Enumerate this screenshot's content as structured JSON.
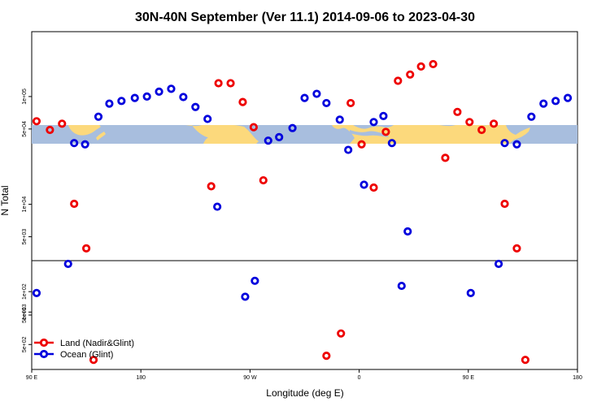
{
  "chart_data": {
    "type": "scatter",
    "title": "30N-40N September (Ver 11.1)   2014-09-06 to 2023-04-30",
    "xlabel": "Longitude (deg E)",
    "ylabel": "N Total",
    "x_ticks": [
      {
        "value": 90,
        "label": "90 E"
      },
      {
        "value": 180,
        "label": "180"
      },
      {
        "value": 270,
        "label": "90 W"
      },
      {
        "value": 360,
        "label": "0"
      },
      {
        "value": 450,
        "label": "90 E"
      },
      {
        "value": 540,
        "label": "180"
      }
    ],
    "xlim": [
      90,
      540
    ],
    "y_scale": "log",
    "panels": [
      {
        "name": "upper",
        "ylim": [
          3000,
          400000
        ],
        "ticks": [
          {
            "value": 100000,
            "label": "1e+05"
          },
          {
            "value": 50000,
            "label": "5e+04"
          },
          {
            "value": 10000,
            "label": "1e+04"
          },
          {
            "value": 5000,
            "label": "5e+03"
          },
          {
            "value": 1000,
            "label": "1e+03"
          },
          {
            "value": 500,
            "label": "5e+02"
          }
        ]
      },
      {
        "name": "lower",
        "ylim": [
          10,
          250
        ],
        "ticks": [
          {
            "value": 100,
            "label": "1e+02"
          },
          {
            "value": 50,
            "label": "5e+01"
          }
        ]
      }
    ],
    "land_map_band": {
      "y_range": [
        10000,
        20000
      ],
      "ocean_color": "#a8bede",
      "land_color": "#fcd97c"
    },
    "series": [
      {
        "name": "Land (Nadir&Glint)",
        "color": "#ee0000",
        "points": [
          {
            "x": 94,
            "y": 59000,
            "panel": "upper"
          },
          {
            "x": 105,
            "y": 49000,
            "panel": "upper"
          },
          {
            "x": 115,
            "y": 56000,
            "panel": "upper"
          },
          {
            "x": 125,
            "y": 10100,
            "panel": "upper"
          },
          {
            "x": 135,
            "y": 3900,
            "panel": "upper"
          },
          {
            "x": 141,
            "y": 360,
            "panel": "upper"
          },
          {
            "x": 238,
            "y": 14700,
            "panel": "upper"
          },
          {
            "x": 244,
            "y": 133000,
            "panel": "upper"
          },
          {
            "x": 254,
            "y": 133000,
            "panel": "upper"
          },
          {
            "x": 264,
            "y": 89000,
            "panel": "upper"
          },
          {
            "x": 273,
            "y": 52000,
            "panel": "upper"
          },
          {
            "x": 281,
            "y": 16700,
            "panel": "upper"
          },
          {
            "x": 333,
            "y": 15,
            "panel": "lower"
          },
          {
            "x": 345,
            "y": 29,
            "panel": "lower"
          },
          {
            "x": 353,
            "y": 87000,
            "panel": "upper"
          },
          {
            "x": 362,
            "y": 36000,
            "panel": "upper"
          },
          {
            "x": 372,
            "y": 14300,
            "panel": "upper"
          },
          {
            "x": 382,
            "y": 47000,
            "panel": "upper"
          },
          {
            "x": 392,
            "y": 140000,
            "panel": "upper"
          },
          {
            "x": 402,
            "y": 160000,
            "panel": "upper"
          },
          {
            "x": 411,
            "y": 190000,
            "panel": "upper"
          },
          {
            "x": 421,
            "y": 200000,
            "panel": "upper"
          },
          {
            "x": 431,
            "y": 27000,
            "panel": "upper"
          },
          {
            "x": 441,
            "y": 72000,
            "panel": "upper"
          },
          {
            "x": 451,
            "y": 58000,
            "panel": "upper"
          },
          {
            "x": 461,
            "y": 49000,
            "panel": "upper"
          },
          {
            "x": 471,
            "y": 56000,
            "panel": "upper"
          },
          {
            "x": 480,
            "y": 10100,
            "panel": "upper"
          },
          {
            "x": 490,
            "y": 3900,
            "panel": "upper"
          },
          {
            "x": 497,
            "y": 360,
            "panel": "upper"
          }
        ]
      },
      {
        "name": "Ocean (Glint)",
        "color": "#0000dd",
        "points": [
          {
            "x": 94,
            "y": 96,
            "panel": "lower"
          },
          {
            "x": 120,
            "y": 2800,
            "panel": "upper"
          },
          {
            "x": 125,
            "y": 37000,
            "panel": "upper"
          },
          {
            "x": 134,
            "y": 36000,
            "panel": "upper"
          },
          {
            "x": 145,
            "y": 65000,
            "panel": "upper"
          },
          {
            "x": 154,
            "y": 86000,
            "panel": "upper"
          },
          {
            "x": 164,
            "y": 91000,
            "panel": "upper"
          },
          {
            "x": 175,
            "y": 97000,
            "panel": "upper"
          },
          {
            "x": 185,
            "y": 100000,
            "panel": "upper"
          },
          {
            "x": 195,
            "y": 111000,
            "panel": "upper"
          },
          {
            "x": 205,
            "y": 118000,
            "panel": "upper"
          },
          {
            "x": 215,
            "y": 99000,
            "panel": "upper"
          },
          {
            "x": 225,
            "y": 80000,
            "panel": "upper"
          },
          {
            "x": 235,
            "y": 62000,
            "panel": "upper"
          },
          {
            "x": 243,
            "y": 9500,
            "panel": "upper"
          },
          {
            "x": 266,
            "y": 86,
            "panel": "lower"
          },
          {
            "x": 274,
            "y": 1950,
            "panel": "upper"
          },
          {
            "x": 285,
            "y": 39000,
            "panel": "upper"
          },
          {
            "x": 294,
            "y": 42000,
            "panel": "upper"
          },
          {
            "x": 305,
            "y": 51000,
            "panel": "upper"
          },
          {
            "x": 315,
            "y": 97000,
            "panel": "upper"
          },
          {
            "x": 325,
            "y": 106000,
            "panel": "upper"
          },
          {
            "x": 333,
            "y": 87000,
            "panel": "upper"
          },
          {
            "x": 344,
            "y": 61000,
            "panel": "upper"
          },
          {
            "x": 351,
            "y": 32000,
            "panel": "upper"
          },
          {
            "x": 364,
            "y": 15200,
            "panel": "upper"
          },
          {
            "x": 372,
            "y": 58000,
            "panel": "upper"
          },
          {
            "x": 380,
            "y": 66000,
            "panel": "upper"
          },
          {
            "x": 387,
            "y": 37000,
            "panel": "upper"
          },
          {
            "x": 395,
            "y": 1750,
            "panel": "upper"
          },
          {
            "x": 400,
            "y": 5600,
            "panel": "upper"
          },
          {
            "x": 452,
            "y": 96,
            "panel": "lower"
          },
          {
            "x": 475,
            "y": 2800,
            "panel": "upper"
          },
          {
            "x": 480,
            "y": 37000,
            "panel": "upper"
          },
          {
            "x": 490,
            "y": 36000,
            "panel": "upper"
          },
          {
            "x": 502,
            "y": 65000,
            "panel": "upper"
          },
          {
            "x": 512,
            "y": 86000,
            "panel": "upper"
          },
          {
            "x": 522,
            "y": 91000,
            "panel": "upper"
          },
          {
            "x": 532,
            "y": 97000,
            "panel": "upper"
          }
        ]
      }
    ],
    "legend": {
      "position": "bottom-left"
    }
  }
}
